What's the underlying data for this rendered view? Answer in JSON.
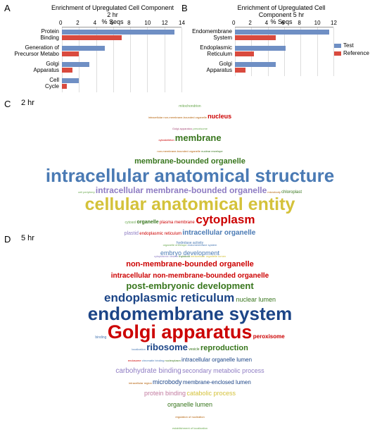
{
  "labels": {
    "A": "A",
    "B": "B",
    "C": "C",
    "D": "D",
    "tp2": "2 hr",
    "tp5": "5 hr"
  },
  "chartA": {
    "title": "Enrichment of Upregulated Cell Component 2 hr",
    "xlabel": "% Seqs",
    "xmax": 14,
    "xticks": [
      0,
      2,
      4,
      6,
      8,
      10,
      12,
      14
    ],
    "categories": [
      "Protein\nBinding",
      "Generation of\nPrecursor Metabo",
      "Golgi\nApparatus",
      "Cell\nCycle"
    ],
    "test": [
      13.2,
      5.0,
      3.2,
      2.0
    ],
    "reference": [
      7.0,
      2.0,
      1.2,
      0.6
    ],
    "colors": {
      "test": "#6f8fc4",
      "reference": "#d94a3e"
    }
  },
  "chartB": {
    "title": "Enrichment of Upregulated Cell Component 5 hr",
    "xlabel": "% Seqs",
    "xmax": 12,
    "xticks": [
      0,
      2,
      4,
      6,
      8,
      10,
      12
    ],
    "categories": [
      "Endomembrane\nSystem",
      "Endoplasmic\nReticulum",
      "Golgi\nApparatus"
    ],
    "test": [
      11.5,
      6.2,
      5.0
    ],
    "reference": [
      5.0,
      2.3,
      1.3
    ],
    "colors": {
      "test": "#6f8fc4",
      "reference": "#d94a3e"
    },
    "legend": {
      "test": "Test",
      "reference": "Reference"
    }
  },
  "cloudC": [
    [
      {
        "t": "mitochondrion",
        "c": "#6aa84f",
        "s": 5
      }
    ],
    [
      {
        "t": "intracellular non-membrane-bounded organelle",
        "c": "#b45f06",
        "s": 4
      },
      {
        "t": " ",
        "s": 4
      },
      {
        "t": "nucleus",
        "c": "#cc0000",
        "s": 9,
        "w": "bold"
      }
    ],
    [
      {
        "t": "Golgi apparatus",
        "c": "#a64d79",
        "s": 4
      },
      {
        "t": "  ",
        "s": 4
      },
      {
        "t": "peroxisome",
        "c": "#6aa84f",
        "s": 4
      }
    ],
    [
      {
        "t": "cytoskeleton",
        "c": "#cc0000",
        "s": 4
      },
      {
        "t": " ",
        "s": 4
      },
      {
        "t": "membrane",
        "c": "#38761d",
        "s": 13,
        "w": "bold"
      }
    ],
    [
      {
        "t": "non-membrane-bounded organelle",
        "c": "#b45f06",
        "s": 4
      },
      {
        "t": "  ",
        "s": 4
      },
      {
        "t": "nuclear envelope",
        "c": "#38761d",
        "s": 4
      }
    ],
    [
      {
        "t": "membrane-bounded organelle",
        "c": "#38761d",
        "s": 11,
        "w": "bold"
      }
    ],
    [
      {
        "t": "intracellular anatomical structure",
        "c": "#4a7ab4",
        "s": 26,
        "w": "bold"
      }
    ],
    [
      {
        "t": "cell periphery",
        "c": "#6aa84f",
        "s": 4
      },
      {
        "t": "  ",
        "s": 4
      },
      {
        "t": "intracellular membrane-bounded organelle",
        "c": "#8e7cc3",
        "s": 12,
        "w": "bold"
      },
      {
        "t": "  ",
        "s": 4
      },
      {
        "t": "microbody",
        "c": "#b45f06",
        "s": 4
      },
      {
        "t": "  ",
        "s": 4
      },
      {
        "t": "chloroplast",
        "c": "#38761d",
        "s": 6
      }
    ],
    [
      {
        "t": "cellular anatomical entity",
        "c": "#d4c23a",
        "s": 25,
        "w": "bold"
      }
    ],
    [
      {
        "t": "cytosol",
        "c": "#6aa84f",
        "s": 5
      },
      {
        "t": "  ",
        "s": 5
      },
      {
        "t": "organelle",
        "c": "#38761d",
        "s": 7,
        "w": "bold"
      },
      {
        "t": "  ",
        "s": 5
      },
      {
        "t": "plasma membrane",
        "c": "#cc0000",
        "s": 6
      },
      {
        "t": " ",
        "s": 6
      },
      {
        "t": "cytoplasm",
        "c": "#cc0000",
        "s": 17,
        "w": "bold"
      }
    ],
    [
      {
        "t": "plastid",
        "c": "#8e7cc3",
        "s": 7
      },
      {
        "t": "  ",
        "s": 5
      },
      {
        "t": "endoplasmic reticulum",
        "c": "#cc0000",
        "s": 6
      },
      {
        "t": "  ",
        "s": 5
      },
      {
        "t": "intracellular organelle",
        "c": "#4a7ab4",
        "s": 10,
        "w": "bold"
      }
    ],
    [
      {
        "t": "organelle envelope",
        "c": "#6aa84f",
        "s": 4
      },
      {
        "t": "  ",
        "s": 4
      },
      {
        "t": "endomembrane system",
        "c": "#4a7ab4",
        "s": 4
      }
    ],
    [
      {
        "t": "cytoplasmic vesicle",
        "c": "#8e7cc3",
        "s": 4
      },
      {
        "t": "  ",
        "s": 4
      },
      {
        "t": "thylakoid",
        "c": "#38761d",
        "s": 4
      },
      {
        "t": "  ",
        "s": 4
      },
      {
        "t": "intracellular organelle lumen",
        "c": "#d4c23a",
        "s": 4
      }
    ]
  ],
  "cloudD": [
    [
      {
        "t": "hydrolase activity",
        "c": "#4a7ab4",
        "s": 5
      }
    ],
    [
      {
        "t": "embryo development",
        "c": "#4a7ab4",
        "s": 9
      }
    ],
    [
      {
        "t": "non-membrane-bounded organelle",
        "c": "#cc0000",
        "s": 11,
        "w": "bold"
      }
    ],
    [
      {
        "t": "intracellular non-membrane-bounded organelle",
        "c": "#cc0000",
        "s": 10,
        "w": "bold"
      }
    ],
    [
      {
        "t": "post-embryonic development",
        "c": "#38761d",
        "s": 13,
        "w": "bold"
      }
    ],
    [
      {
        "t": "endoplasmic reticulum",
        "c": "#1c4587",
        "s": 17,
        "w": "bold"
      },
      {
        "t": " ",
        "s": 8
      },
      {
        "t": "nuclear lumen",
        "c": "#38761d",
        "s": 9
      }
    ],
    [
      {
        "t": "endomembrane system",
        "c": "#1c4587",
        "s": 26,
        "w": "bold"
      }
    ],
    [
      {
        "t": "binding",
        "c": "#4a7ab4",
        "s": 5
      },
      {
        "t": " ",
        "s": 5
      },
      {
        "t": "Golgi apparatus",
        "c": "#cc0000",
        "s": 27,
        "w": "bold"
      },
      {
        "t": " ",
        "s": 5
      },
      {
        "t": "peroxisome",
        "c": "#cc0000",
        "s": 8,
        "w": "bold"
      }
    ],
    [
      {
        "t": "localization",
        "c": "#4a7ab4",
        "s": 4
      },
      {
        "t": "  ",
        "s": 5
      },
      {
        "t": "ribosome",
        "c": "#1c4587",
        "s": 13,
        "w": "bold"
      },
      {
        "t": "  ",
        "s": 5
      },
      {
        "t": "vesicle",
        "c": "#38761d",
        "s": 5
      },
      {
        "t": " ",
        "s": 5
      },
      {
        "t": "reproduction",
        "c": "#38761d",
        "s": 11,
        "w": "bold"
      }
    ],
    [
      {
        "t": "endosome",
        "c": "#cc0000",
        "s": 4
      },
      {
        "t": "  ",
        "s": 4
      },
      {
        "t": "chromatin binding",
        "c": "#4a7ab4",
        "s": 4
      },
      {
        "t": "  ",
        "s": 4
      },
      {
        "t": "nucleoplasm",
        "c": "#38761d",
        "s": 4
      },
      {
        "t": "  ",
        "s": 4
      },
      {
        "t": "intracellular organelle lumen",
        "c": "#1c4587",
        "s": 8
      }
    ],
    [
      {
        "t": "carbohydrate binding",
        "c": "#8e7cc3",
        "s": 10
      },
      {
        "t": "  ",
        "s": 5
      },
      {
        "t": "secondary metabolic process",
        "c": "#8e7cc3",
        "s": 9
      }
    ],
    [
      {
        "t": "intracellular region",
        "c": "#b45f06",
        "s": 4
      },
      {
        "t": "  ",
        "s": 4
      },
      {
        "t": "microbody",
        "c": "#1c4587",
        "s": 9
      },
      {
        "t": "  ",
        "s": 5
      },
      {
        "t": "membrane-enclosed lumen",
        "c": "#1c4587",
        "s": 8
      }
    ],
    [
      {
        "t": "protein binding",
        "c": "#c27ba0",
        "s": 9
      },
      {
        "t": "  ",
        "s": 5
      },
      {
        "t": "catabolic process",
        "c": "#d4c23a",
        "s": 9
      }
    ],
    [
      {
        "t": "organelle lumen",
        "c": "#38761d",
        "s": 9
      }
    ],
    [
      {
        "t": "regulation of nucleation",
        "c": "#b45f06",
        "s": 4
      }
    ],
    [
      {
        "t": "establishment of localization",
        "c": "#6aa84f",
        "s": 4
      }
    ]
  ]
}
